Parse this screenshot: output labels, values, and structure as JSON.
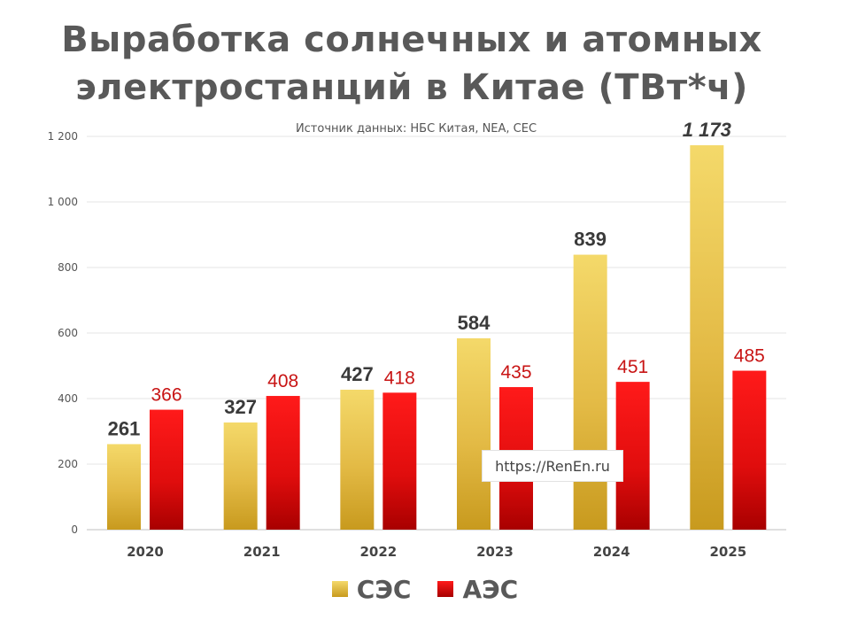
{
  "chart_data": {
    "type": "bar",
    "title_lines": [
      "Выработка солнечных и атомных",
      "электростанций в Китае (ТВт*ч)"
    ],
    "subtitle": "Источник данных: НБС Китая, NEA, CEC",
    "categories": [
      "2020",
      "2021",
      "2022",
      "2023",
      "2024",
      "2025"
    ],
    "series": [
      {
        "name": "СЭС",
        "values": [
          261,
          327,
          427,
          584,
          839,
          1173
        ],
        "labels": [
          "261",
          "327",
          "427",
          "584",
          "839",
          "1 173"
        ],
        "color": "#e8c24a",
        "label_color": "#3a3a3a"
      },
      {
        "name": "АЭС",
        "values": [
          366,
          408,
          418,
          435,
          451,
          485
        ],
        "labels": [
          "366",
          "408",
          "418",
          "435",
          "451",
          "485"
        ],
        "color": "#e01010",
        "label_color": "#c81414"
      }
    ],
    "y_ticks": [
      {
        "value": 0,
        "label": "0"
      },
      {
        "value": 200,
        "label": "200"
      },
      {
        "value": 400,
        "label": "400"
      },
      {
        "value": 600,
        "label": "600"
      },
      {
        "value": 800,
        "label": "800"
      },
      {
        "value": 1000,
        "label": "1 000"
      },
      {
        "value": 1200,
        "label": "1 200"
      }
    ],
    "ylim": [
      0,
      1200
    ],
    "grid": true,
    "legend": "bottom-center"
  },
  "watermark": "https://RenEn.ru"
}
